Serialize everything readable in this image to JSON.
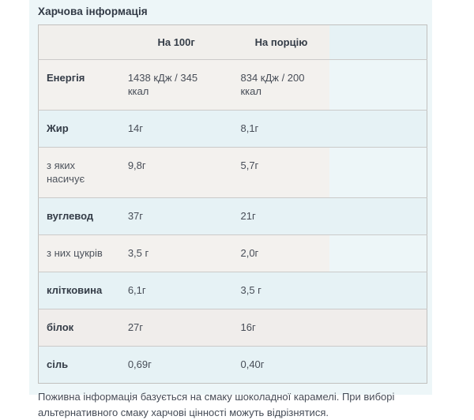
{
  "colors": {
    "page-bg": "#ffffff",
    "panel-bg": "#edf6f8",
    "row-blue": "#e6f2f5",
    "row-warm": "#f3f1ee",
    "header-warm": "#f1efec",
    "row-warm-full": "#f0edeb",
    "border-outer": "#c1c0be",
    "border-row": "#cbcac9",
    "title-text": "#313945",
    "label-bold-text": "#343c47",
    "label-regular-text": "#4d535c",
    "value-text": "#474d57",
    "footnote-text": "#454c57"
  },
  "section": {
    "title": "Харчова інформація",
    "table": {
      "header": {
        "per_100g": "На 100г",
        "per_portion": "На порцію"
      },
      "rows": [
        {
          "label": "Енергія",
          "per_100g": "1438 кДж / 345\nккал",
          "per_portion": "834 кДж / 200\nккал"
        },
        {
          "label": "Жир",
          "per_100g": "14г",
          "per_portion": "8,1г"
        },
        {
          "label": "з яких насичує",
          "per_100g": "9,8г",
          "per_portion": "5,7г"
        },
        {
          "label": "вуглевод",
          "per_100g": "37г",
          "per_portion": "21г"
        },
        {
          "label": "з них цукрів",
          "per_100g": "3,5 г",
          "per_portion": "2,0г"
        },
        {
          "label": "клітковина",
          "per_100g": "6,1г",
          "per_portion": "3,5 г"
        },
        {
          "label": "білок",
          "per_100g": "27г",
          "per_portion": "16г"
        },
        {
          "label": "сіль",
          "per_100g": "0,69г",
          "per_portion": "0,40г"
        }
      ]
    },
    "footnote": "Поживна інформація базується на смаку шоколадної карамелі. При виборі альтернативного смаку харчові цінності можуть відрізнятися."
  }
}
